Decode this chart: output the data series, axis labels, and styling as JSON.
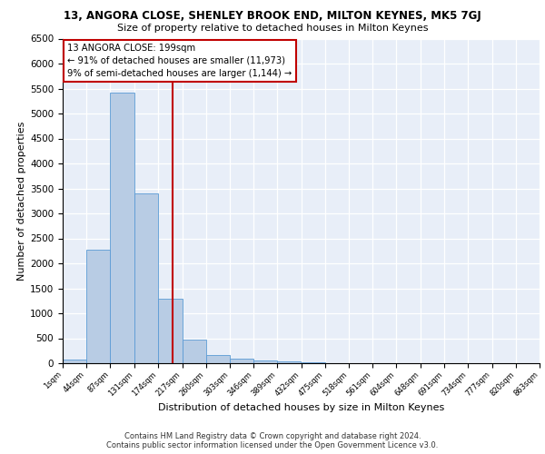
{
  "title_line1": "13, ANGORA CLOSE, SHENLEY BROOK END, MILTON KEYNES, MK5 7GJ",
  "title_line2": "Size of property relative to detached houses in Milton Keynes",
  "xlabel": "Distribution of detached houses by size in Milton Keynes",
  "ylabel": "Number of detached properties",
  "bin_edges": [
    1,
    44,
    87,
    131,
    174,
    217,
    260,
    303,
    346,
    389,
    432,
    475,
    518,
    561,
    604,
    648,
    691,
    734,
    777,
    820,
    863
  ],
  "bar_heights": [
    70,
    2280,
    5420,
    3400,
    1300,
    480,
    165,
    90,
    50,
    30,
    15,
    8,
    5,
    2,
    1,
    0,
    0,
    0,
    0,
    0
  ],
  "bar_color": "#b8cce4",
  "bar_edge_color": "#5b9bd5",
  "property_size": 199,
  "vline_color": "#c00000",
  "annotation_line1": "13 ANGORA CLOSE: 199sqm",
  "annotation_line2": "← 91% of detached houses are smaller (11,973)",
  "annotation_line3": "9% of semi-detached houses are larger (1,144) →",
  "annotation_box_color": "#ffffff",
  "annotation_box_edge": "#c00000",
  "ylim": [
    0,
    6500
  ],
  "yticks": [
    0,
    500,
    1000,
    1500,
    2000,
    2500,
    3000,
    3500,
    4000,
    4500,
    5000,
    5500,
    6000,
    6500
  ],
  "bg_color": "#e8eef8",
  "grid_color": "#ffffff",
  "footer_line1": "Contains HM Land Registry data © Crown copyright and database right 2024.",
  "footer_line2": "Contains public sector information licensed under the Open Government Licence v3.0."
}
